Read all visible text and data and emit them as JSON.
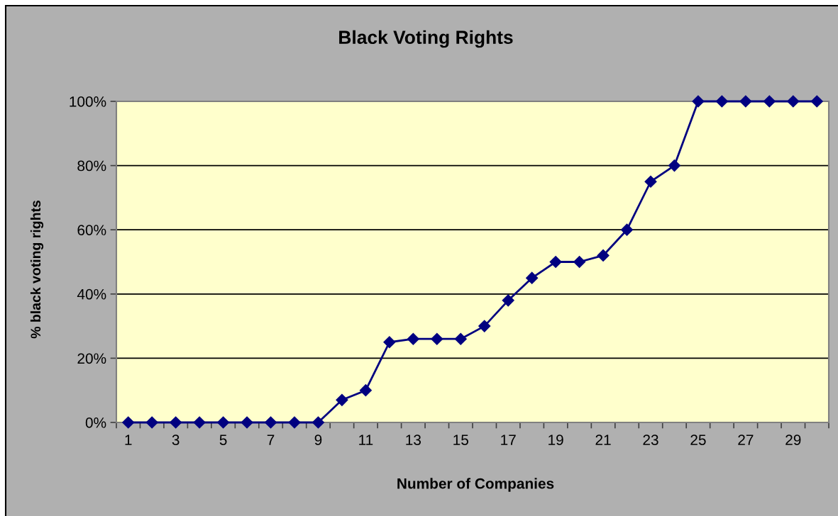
{
  "chart_data": {
    "type": "line",
    "title": "Black Voting Rights",
    "xlabel": "Number of Companies",
    "ylabel": "% black voting rights",
    "categories": [
      "1",
      null,
      "3",
      null,
      "5",
      null,
      "7",
      null,
      "9",
      null,
      "11",
      null,
      "13",
      null,
      "15",
      null,
      "17",
      null,
      "19",
      null,
      "21",
      null,
      "23",
      null,
      "25",
      null,
      "27",
      null,
      "29",
      null
    ],
    "series": [
      {
        "color": "#000080",
        "values": [
          0,
          0,
          0,
          0,
          0,
          0,
          0,
          0,
          0,
          7,
          10,
          25,
          26,
          26,
          26,
          30,
          38,
          45,
          50,
          50,
          52,
          60,
          75,
          80,
          100,
          100,
          100,
          100,
          100,
          100
        ]
      }
    ],
    "ylim": [
      0,
      100
    ],
    "yticks": [
      {
        "value": 0,
        "label": "0%"
      },
      {
        "value": 20,
        "label": "20%"
      },
      {
        "value": 40,
        "label": "40%"
      },
      {
        "value": 60,
        "label": "60%"
      },
      {
        "value": 80,
        "label": "80%"
      },
      {
        "value": 100,
        "label": "100%"
      }
    ],
    "grid": "y",
    "marker": "diamond",
    "line_style": "solid"
  }
}
